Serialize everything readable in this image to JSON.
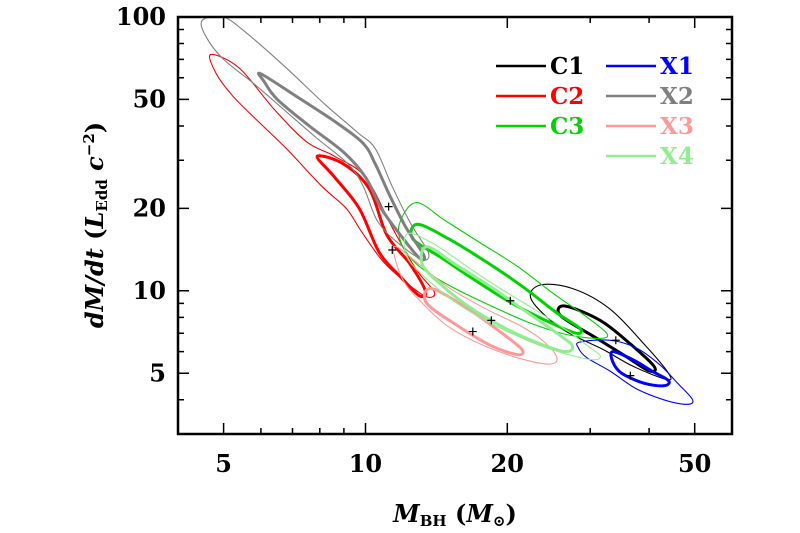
{
  "chart_data": {
    "type": "contour",
    "xscale": "log",
    "yscale": "log",
    "xlim": [
      4.0,
      60.0
    ],
    "ylim": [
      3.0,
      100.0
    ],
    "xticks": [
      5,
      10,
      20,
      50
    ],
    "xtick_labels": [
      "5",
      "10",
      "20",
      "50"
    ],
    "yticks": [
      5,
      10,
      20,
      50,
      100
    ],
    "ytick_labels": [
      "5",
      "10",
      "20",
      "50",
      "100"
    ],
    "xlabel": {
      "main": "M",
      "sub": "BH",
      "paren_open": " (",
      "unit_main": "M",
      "unit_sub": "⊙",
      "paren_close": ")"
    },
    "ylabel": {
      "main": "dM/dt",
      "paren_open": " (",
      "unit_main": "L",
      "unit_sub": "Edd",
      "unit_rest": " c",
      "unit_sup": "−2",
      "paren_close": ")"
    },
    "legend_position": "top-right",
    "series": [
      {
        "name": "C1",
        "color": "#000000",
        "best_fit": [
          34.0,
          6.6
        ],
        "inner": [
          [
            26.5,
            8.8
          ],
          [
            31.5,
            7.8
          ],
          [
            36.5,
            6.4
          ],
          [
            41.0,
            5.3
          ],
          [
            40.0,
            5.1
          ],
          [
            35.5,
            5.8
          ],
          [
            31.0,
            6.7
          ],
          [
            26.0,
            8.1
          ]
        ],
        "outer": [
          [
            23.5,
            10.5
          ],
          [
            27.5,
            10.2
          ],
          [
            33.0,
            8.6
          ],
          [
            39.0,
            6.4
          ],
          [
            44.0,
            5.0
          ],
          [
            43.5,
            4.75
          ],
          [
            37.0,
            5.3
          ],
          [
            32.0,
            6.1
          ],
          [
            26.0,
            7.3
          ],
          [
            22.5,
            9.3
          ]
        ]
      },
      {
        "name": "C2",
        "color": "#ff0000",
        "best_fit": [
          11.4,
          14.1
        ],
        "inner": [
          [
            7.9,
            31.0
          ],
          [
            9.0,
            29.0
          ],
          [
            10.2,
            23.5
          ],
          [
            11.1,
            16.0
          ],
          [
            12.4,
            12.6
          ],
          [
            13.4,
            10.0
          ],
          [
            13.0,
            9.6
          ],
          [
            11.9,
            11.2
          ],
          [
            10.7,
            13.8
          ],
          [
            9.7,
            20.0
          ],
          [
            8.6,
            26.0
          ]
        ],
        "outer": [
          [
            4.7,
            73.0
          ],
          [
            5.4,
            65.0
          ],
          [
            6.4,
            46.0
          ],
          [
            7.5,
            35.0
          ],
          [
            8.6,
            31.0
          ],
          [
            10.0,
            26.0
          ],
          [
            11.4,
            17.0
          ],
          [
            12.8,
            12.0
          ],
          [
            14.0,
            9.9
          ],
          [
            13.5,
            9.5
          ],
          [
            12.3,
            10.6
          ],
          [
            10.9,
            12.8
          ],
          [
            9.8,
            16.5
          ],
          [
            9.1,
            20.0
          ],
          [
            8.1,
            24.0
          ],
          [
            6.8,
            33.0
          ],
          [
            5.8,
            43.0
          ],
          [
            5.2,
            52.0
          ],
          [
            4.8,
            63.0
          ]
        ]
      },
      {
        "name": "C3",
        "color": "#00d400",
        "best_fit": [
          20.3,
          9.2
        ],
        "inner": [
          [
            12.9,
            17.5
          ],
          [
            15.0,
            15.5
          ],
          [
            18.0,
            12.8
          ],
          [
            21.5,
            10.4
          ],
          [
            25.5,
            8.3
          ],
          [
            28.5,
            7.3
          ],
          [
            28.0,
            7.0
          ],
          [
            24.5,
            7.7
          ],
          [
            20.5,
            9.0
          ],
          [
            17.0,
            11.0
          ],
          [
            14.5,
            13.2
          ],
          [
            12.6,
            15.5
          ]
        ],
        "outer": [
          [
            11.8,
            17.5
          ],
          [
            12.8,
            21.0
          ],
          [
            14.8,
            18.0
          ],
          [
            17.5,
            15.0
          ],
          [
            21.0,
            12.3
          ],
          [
            25.0,
            9.8
          ],
          [
            29.0,
            8.2
          ],
          [
            32.5,
            7.0
          ],
          [
            31.5,
            6.7
          ],
          [
            27.0,
            6.9
          ],
          [
            22.5,
            7.6
          ],
          [
            18.5,
            8.8
          ],
          [
            15.0,
            10.5
          ],
          [
            13.0,
            12.3
          ],
          [
            12.0,
            14.5
          ]
        ]
      },
      {
        "name": "X1",
        "color": "#0000ff",
        "best_fit": [
          36.5,
          4.9
        ],
        "inner": [
          [
            33.5,
            6.0
          ],
          [
            37.0,
            5.6
          ],
          [
            40.5,
            5.1
          ],
          [
            44.0,
            4.7
          ],
          [
            43.0,
            4.5
          ],
          [
            39.0,
            4.6
          ],
          [
            35.0,
            5.0
          ],
          [
            33.5,
            5.5
          ]
        ],
        "outer": [
          [
            28.5,
            6.5
          ],
          [
            33.0,
            6.6
          ],
          [
            37.5,
            6.2
          ],
          [
            42.0,
            5.4
          ],
          [
            46.0,
            4.6
          ],
          [
            49.5,
            4.0
          ],
          [
            48.0,
            3.85
          ],
          [
            43.0,
            4.0
          ],
          [
            37.5,
            4.4
          ],
          [
            33.0,
            5.1
          ],
          [
            29.5,
            5.7
          ],
          [
            28.3,
            6.2
          ]
        ]
      },
      {
        "name": "X2",
        "color": "#808080",
        "best_fit": [
          11.2,
          20.3
        ],
        "inner": [
          [
            6.0,
            62.0
          ],
          [
            7.3,
            50.0
          ],
          [
            8.7,
            41.0
          ],
          [
            9.9,
            34.5
          ],
          [
            10.5,
            29.0
          ],
          [
            11.3,
            22.0
          ],
          [
            12.2,
            17.0
          ],
          [
            13.3,
            13.5
          ],
          [
            13.0,
            13.2
          ],
          [
            11.8,
            16.2
          ],
          [
            10.8,
            20.0
          ],
          [
            10.0,
            26.0
          ],
          [
            9.0,
            32.0
          ],
          [
            7.6,
            40.0
          ],
          [
            6.5,
            50.0
          ],
          [
            6.1,
            58.0
          ]
        ],
        "outer": [
          [
            5.0,
            100.0
          ],
          [
            5.7,
            85.0
          ],
          [
            6.8,
            65.0
          ],
          [
            8.2,
            48.0
          ],
          [
            9.6,
            38.0
          ],
          [
            10.5,
            33.0
          ],
          [
            11.4,
            24.0
          ],
          [
            12.5,
            17.5
          ],
          [
            13.6,
            13.8
          ],
          [
            13.2,
            13.0
          ],
          [
            11.7,
            15.0
          ],
          [
            10.6,
            18.0
          ],
          [
            9.9,
            24.0
          ],
          [
            9.2,
            29.0
          ],
          [
            7.9,
            36.0
          ],
          [
            6.7,
            46.0
          ],
          [
            5.8,
            57.0
          ],
          [
            5.0,
            70.0
          ],
          [
            4.6,
            84.0
          ],
          [
            4.5,
            97.0
          ]
        ]
      },
      {
        "name": "X3",
        "color": "#ff9999",
        "best_fit": [
          16.9,
          7.1
        ],
        "inner": [
          [
            13.8,
            10.2
          ],
          [
            16.5,
            8.6
          ],
          [
            19.5,
            7.0
          ],
          [
            21.5,
            6.1
          ],
          [
            21.0,
            5.85
          ],
          [
            18.5,
            6.3
          ],
          [
            15.8,
            7.4
          ],
          [
            13.5,
            9.0
          ]
        ],
        "outer": [
          [
            11.5,
            14.5
          ],
          [
            13.0,
            12.5
          ],
          [
            15.0,
            10.3
          ],
          [
            18.0,
            8.6
          ],
          [
            21.5,
            7.4
          ],
          [
            24.0,
            6.5
          ],
          [
            25.5,
            5.7
          ],
          [
            24.5,
            5.4
          ],
          [
            21.0,
            5.7
          ],
          [
            17.5,
            6.4
          ],
          [
            15.0,
            7.4
          ],
          [
            13.3,
            8.9
          ],
          [
            12.0,
            11.0
          ]
        ]
      },
      {
        "name": "X4",
        "color": "#90ee90",
        "best_fit": [
          18.5,
          7.8
        ],
        "inner": [
          [
            13.5,
            14.5
          ],
          [
            15.5,
            12.5
          ],
          [
            18.5,
            10.3
          ],
          [
            21.5,
            8.6
          ],
          [
            25.5,
            7.0
          ],
          [
            27.5,
            6.3
          ],
          [
            26.5,
            6.0
          ],
          [
            23.0,
            6.5
          ],
          [
            19.5,
            7.4
          ],
          [
            16.5,
            8.8
          ],
          [
            14.5,
            10.5
          ],
          [
            13.2,
            12.5
          ]
        ],
        "outer": [
          [
            12.3,
            16.2
          ],
          [
            14.0,
            14.8
          ],
          [
            16.5,
            12.2
          ],
          [
            19.5,
            10.1
          ],
          [
            23.0,
            8.5
          ],
          [
            27.0,
            7.1
          ],
          [
            30.0,
            6.2
          ],
          [
            31.5,
            5.8
          ],
          [
            30.5,
            5.6
          ],
          [
            26.5,
            5.9
          ],
          [
            22.5,
            6.5
          ],
          [
            18.5,
            7.6
          ],
          [
            15.5,
            9.1
          ],
          [
            13.3,
            11.3
          ],
          [
            12.2,
            13.5
          ]
        ]
      }
    ]
  }
}
